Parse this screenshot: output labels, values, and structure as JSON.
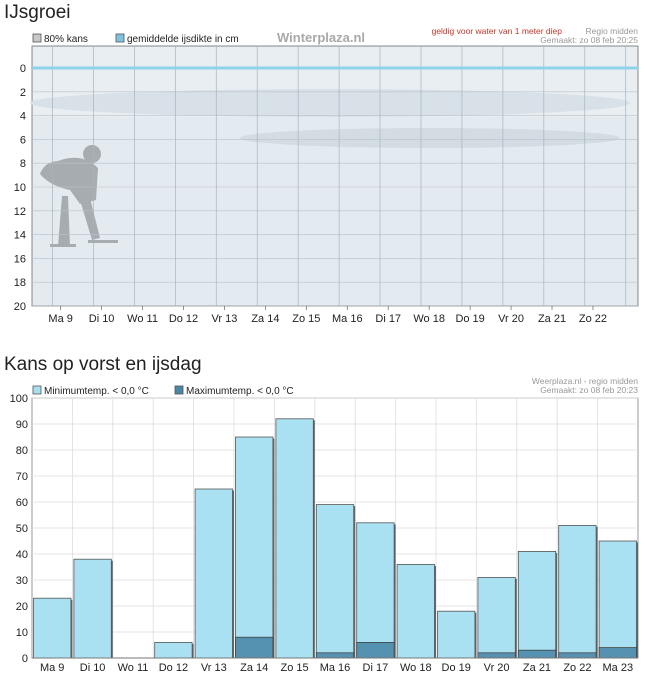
{
  "ice": {
    "section_title": "IJsgroei",
    "legend": [
      {
        "label": "80% kans",
        "color": "#c8c8c8"
      },
      {
        "label": "gemiddelde ijsdikte in cm",
        "color": "#7ec4e0"
      }
    ],
    "brand": "Winterplaza.nl",
    "note": "geldig voor water van 1 meter diep",
    "region": "Regio midden",
    "made": "Gemaakt: zo 08 feb 20:25",
    "colors": {
      "plot_bg": "#dde6ec",
      "ice_line": "#8fd3ea",
      "note": "#c0392b"
    }
  },
  "frost": {
    "section_title": "Kans op vorst en ijsdag",
    "legend": [
      {
        "label": "Minimumtemp. < 0,0 °C",
        "color": "#a8dff0"
      },
      {
        "label": "Maximumtemp. < 0,0 °C",
        "color": "#4a86a6"
      }
    ],
    "source": "Weerplaza.nl - regio midden",
    "made": "Gemaakt: zo 08 feb 20:23",
    "colors": {
      "min_bar": "#a9e1f2",
      "max_bar": "#5592b2"
    }
  },
  "chart_data": [
    {
      "type": "line",
      "title": "IJsgroei",
      "ylim": [
        0,
        20
      ],
      "y_inverted": true,
      "y_ticks": [
        0,
        2,
        4,
        6,
        8,
        10,
        12,
        14,
        16,
        18,
        20
      ],
      "categories": [
        "Ma 9",
        "Di 10",
        "Wo 11",
        "Do 12",
        "Vr 13",
        "Za 14",
        "Zo 15",
        "Ma 16",
        "Di 17",
        "Wo 18",
        "Do 19",
        "Vr 20",
        "Za 21",
        "Zo 22"
      ],
      "series": [
        {
          "name": "gemiddelde ijsdikte in cm",
          "values": [
            0,
            0,
            0,
            0,
            0,
            0,
            0,
            0,
            0,
            0,
            0,
            0,
            0,
            0
          ]
        }
      ],
      "grid": true
    },
    {
      "type": "bar",
      "title": "Kans op vorst en ijsdag",
      "ylim": [
        0,
        100
      ],
      "y_ticks": [
        0,
        10,
        20,
        30,
        40,
        50,
        60,
        70,
        80,
        90,
        100
      ],
      "categories": [
        "Ma 9",
        "Di 10",
        "Wo 11",
        "Do 12",
        "Vr 13",
        "Za 14",
        "Zo 15",
        "Ma 16",
        "Di 17",
        "Wo 18",
        "Do 19",
        "Vr 20",
        "Za 21",
        "Zo 22",
        "Ma 23"
      ],
      "series": [
        {
          "name": "Minimumtemp. < 0,0 °C",
          "values": [
            23,
            38,
            0,
            6,
            65,
            85,
            92,
            59,
            52,
            36,
            18,
            31,
            41,
            51,
            45
          ]
        },
        {
          "name": "Maximumtemp. < 0,0 °C",
          "values": [
            0,
            0,
            0,
            0,
            0,
            8,
            0,
            2,
            6,
            0,
            0,
            2,
            3,
            2,
            4
          ]
        }
      ],
      "grid": true
    }
  ]
}
